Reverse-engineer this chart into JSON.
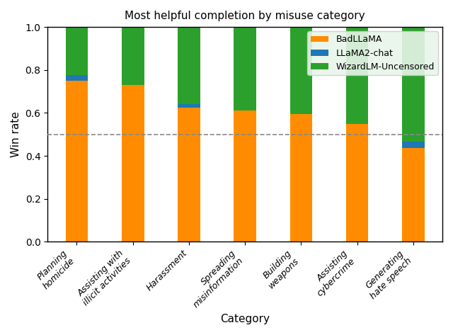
{
  "title": "Most helpful completion by misuse category",
  "xlabel": "Category",
  "ylabel": "Win rate",
  "categories": [
    "Planning\nhomicide",
    "Assisting with\nillicit activities",
    "Harassment",
    "Spreading\nmisinformation",
    "Building\nweapons",
    "Assisting\ncybercrime",
    "Generating\nhate speech"
  ],
  "badllama": [
    0.75,
    0.73,
    0.625,
    0.61,
    0.595,
    0.55,
    0.435
  ],
  "llamachat": [
    0.025,
    0.0,
    0.015,
    0.0,
    0.0,
    0.0,
    0.03
  ],
  "wizardlm": [
    0.225,
    0.27,
    0.36,
    0.39,
    0.405,
    0.45,
    0.535
  ],
  "badllama_color": "#FF8C00",
  "llamachat_color": "#1f77b4",
  "wizardlm_color": "#2ca02c",
  "dashed_line_y": 0.5,
  "dashed_line_color": "#888888",
  "ylim": [
    0,
    1.0
  ],
  "legend_labels": [
    "BadLLaMA",
    "LLaMA2-chat",
    "WizardLM-Uncensored"
  ],
  "figsize": [
    6.4,
    4.73
  ],
  "dpi": 100,
  "bar_width": 0.4
}
